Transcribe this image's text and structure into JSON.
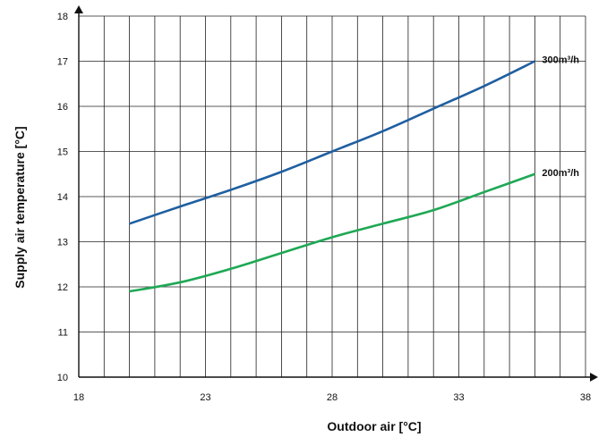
{
  "chart_data": {
    "type": "line",
    "title": "",
    "xlabel": "Outdoor air [°C]",
    "ylabel": "Supply air temperature [°C]",
    "xlim": [
      18,
      38
    ],
    "ylim": [
      10,
      18
    ],
    "xticks": [
      18,
      23,
      28,
      33,
      38
    ],
    "yticks": [
      10,
      11,
      12,
      13,
      14,
      15,
      16,
      17,
      18
    ],
    "grid": true,
    "series": [
      {
        "name": "300m³/h",
        "color": "#1f5fa0",
        "x": [
          20,
          22,
          24,
          26,
          28,
          30,
          32,
          34,
          36
        ],
        "y": [
          13.4,
          13.78,
          14.15,
          14.55,
          15.0,
          15.45,
          15.95,
          16.45,
          17.0
        ]
      },
      {
        "name": "200m³/h",
        "color": "#1fa855",
        "x": [
          20,
          22,
          24,
          26,
          28,
          30,
          32,
          34,
          36
        ],
        "y": [
          11.9,
          12.1,
          12.4,
          12.75,
          13.1,
          13.4,
          13.7,
          14.1,
          14.5
        ]
      }
    ]
  }
}
